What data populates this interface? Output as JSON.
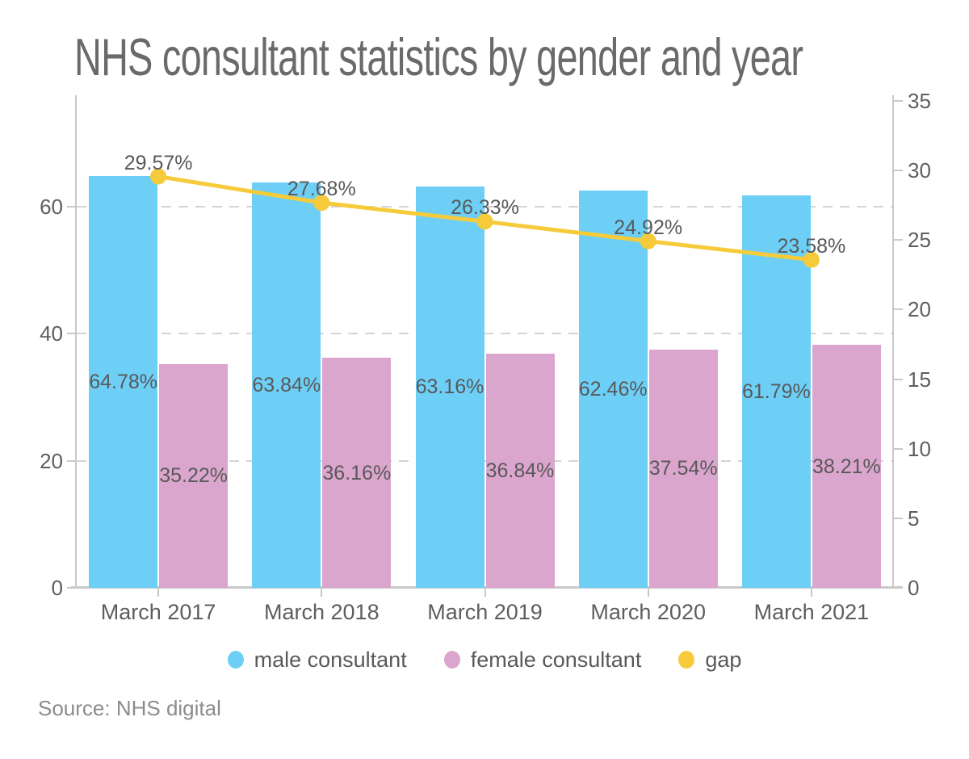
{
  "title": "NHS consultant statistics by gender and year",
  "source_note": "Source: NHS digital",
  "legend": {
    "items": [
      {
        "label": "male consultant",
        "color": "#6DCFF6"
      },
      {
        "label": "female consultant",
        "color": "#DBA6CD"
      },
      {
        "label": "gap",
        "color": "#F6CB3B"
      }
    ]
  },
  "colors": {
    "male_bar": "#6DCFF6",
    "female_bar": "#DBA6CD",
    "gap_line": "#F6CB3B",
    "axis_text": "#5e5e5e",
    "data_label_text": "#595959",
    "title_text": "#6a6a6a",
    "source_text": "#8c8c8c",
    "gridline": "#d4d4d4",
    "axis_line": "#c9c9c9"
  },
  "chart_data": {
    "type": "bar",
    "subtype": "grouped-bars-with-line-overlay-dual-y-axis",
    "title": "NHS consultant statistics by gender and year",
    "categories": [
      "March 2017",
      "March 2018",
      "March 2019",
      "March 2020",
      "March 2021"
    ],
    "series": [
      {
        "name": "male consultant",
        "type": "bar",
        "y_axis": "left",
        "color": "#6DCFF6",
        "values": [
          64.78,
          63.84,
          63.16,
          62.46,
          61.79
        ],
        "data_labels": [
          "64.78%",
          "63.84%",
          "63.16%",
          "62.46%",
          "61.79%"
        ],
        "label_position": "inside-center"
      },
      {
        "name": "female consultant",
        "type": "bar",
        "y_axis": "left",
        "color": "#DBA6CD",
        "values": [
          35.22,
          36.16,
          36.84,
          37.54,
          38.21
        ],
        "data_labels": [
          "35.22%",
          "36.16%",
          "36.84%",
          "37.54%",
          "38.21%"
        ],
        "label_position": "inside-center"
      },
      {
        "name": "gap",
        "type": "line",
        "y_axis": "right",
        "color": "#F6CB3B",
        "values": [
          29.57,
          27.68,
          26.33,
          24.92,
          23.58
        ],
        "data_labels": [
          "29.57%",
          "27.68%",
          "26.33%",
          "24.92%",
          "23.58%"
        ],
        "label_position": "above-point"
      }
    ],
    "left_axis": {
      "tick_labels": [
        "0",
        "20",
        "40",
        "60"
      ],
      "tick_values": [
        0,
        20,
        40,
        60
      ],
      "range": [
        0,
        77.5
      ],
      "gridline_values": [
        20,
        40,
        60
      ],
      "grid_style": "dashed"
    },
    "right_axis": {
      "tick_labels": [
        "0",
        "5",
        "10",
        "15",
        "20",
        "25",
        "30",
        "35"
      ],
      "tick_values": [
        0,
        5,
        10,
        15,
        20,
        25,
        30,
        35
      ],
      "range": [
        0,
        35
      ]
    },
    "legend_position": "bottom",
    "legend_entries": [
      "male consultant",
      "female consultant",
      "gap"
    ],
    "source": "Source: NHS digital"
  }
}
